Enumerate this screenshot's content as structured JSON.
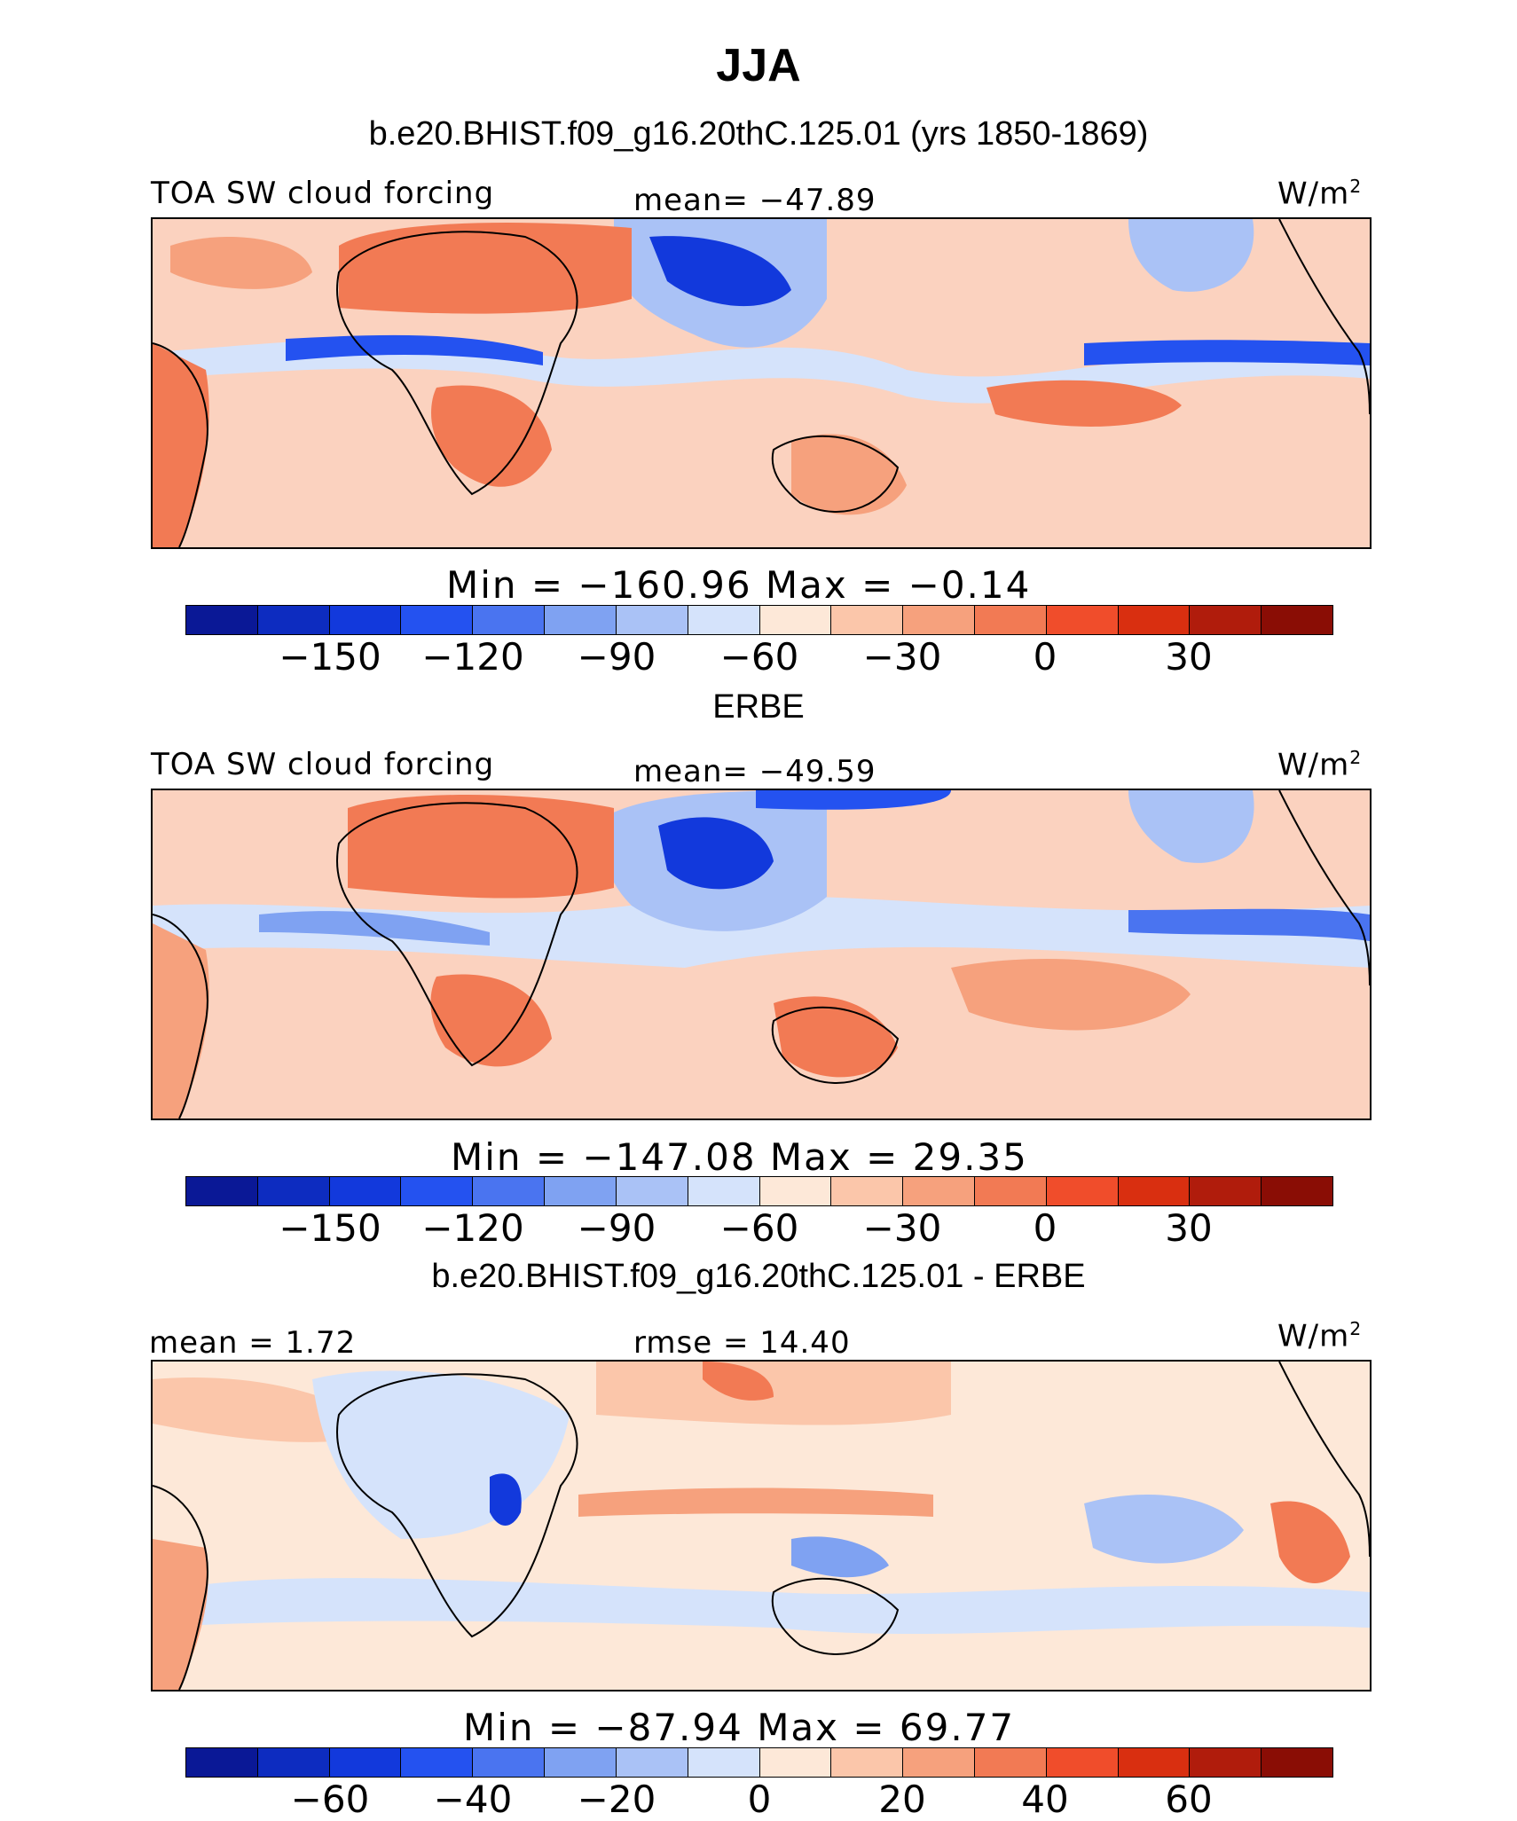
{
  "figure": {
    "title": "JJA",
    "panel1_title": "b.e20.BHIST.f09_g16.20thC.125.01 (yrs 1850-1869)",
    "panel2_title": "ERBE",
    "panel3_title": "b.e20.BHIST.f09_g16.20thC.125.01 - ERBE"
  },
  "panels": [
    {
      "left_label": "TOA SW cloud forcing",
      "center_label": "mean= −47.89",
      "units": "W/m",
      "units_exp": "2",
      "minmax": "Min  =  −160.96  Max  =   −0.14",
      "ticks": [
        "−150",
        "−120",
        "−90",
        "−60",
        "−30",
        "0",
        "30"
      ]
    },
    {
      "left_label": "TOA SW cloud forcing",
      "center_label": "mean= −49.59",
      "units": "W/m",
      "units_exp": "2",
      "minmax": "Min  =  −147.08  Max  =   29.35",
      "ticks": [
        "−150",
        "−120",
        "−90",
        "−60",
        "−30",
        "0",
        "30"
      ]
    },
    {
      "left_label": "mean  =   1.72",
      "center_label": "rmse  =  14.40",
      "units": "W/m",
      "units_exp": "2",
      "minmax": "Min  =  −87.94  Max  =   69.77",
      "ticks": [
        "−60",
        "−40",
        "−20",
        "0",
        "20",
        "40",
        "60"
      ]
    }
  ],
  "colorbar_colors": [
    "#0a1896",
    "#0d2cc0",
    "#1239dc",
    "#2452f0",
    "#4a74f0",
    "#7fa2f2",
    "#aac2f6",
    "#d5e3fb",
    "#fde8d8",
    "#fbc6aa",
    "#f6a17d",
    "#f27a54",
    "#f04d2b",
    "#d92f10",
    "#b01c0c",
    "#8a0d05"
  ],
  "map_colors": {
    "ocean_base": "#fbd2bf",
    "warm1": "#f6a17d",
    "warm2": "#f27a54",
    "warm3": "#f04d2b",
    "cool1": "#d5e3fb",
    "cool2": "#aac2f6",
    "cool3": "#4a74f0",
    "cool4": "#1239dc",
    "pale": "#fde8d8"
  }
}
